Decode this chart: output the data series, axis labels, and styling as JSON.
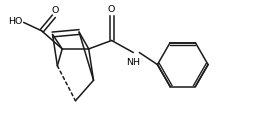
{
  "background": "#ffffff",
  "line_color": "#1a1a1a",
  "line_width": 1.1,
  "text_color": "#000000",
  "font_size": 6.8,
  "fig_width": 2.57,
  "fig_height": 1.34,
  "xlim": [
    0,
    10.5
  ],
  "ylim": [
    0,
    5.5
  ]
}
